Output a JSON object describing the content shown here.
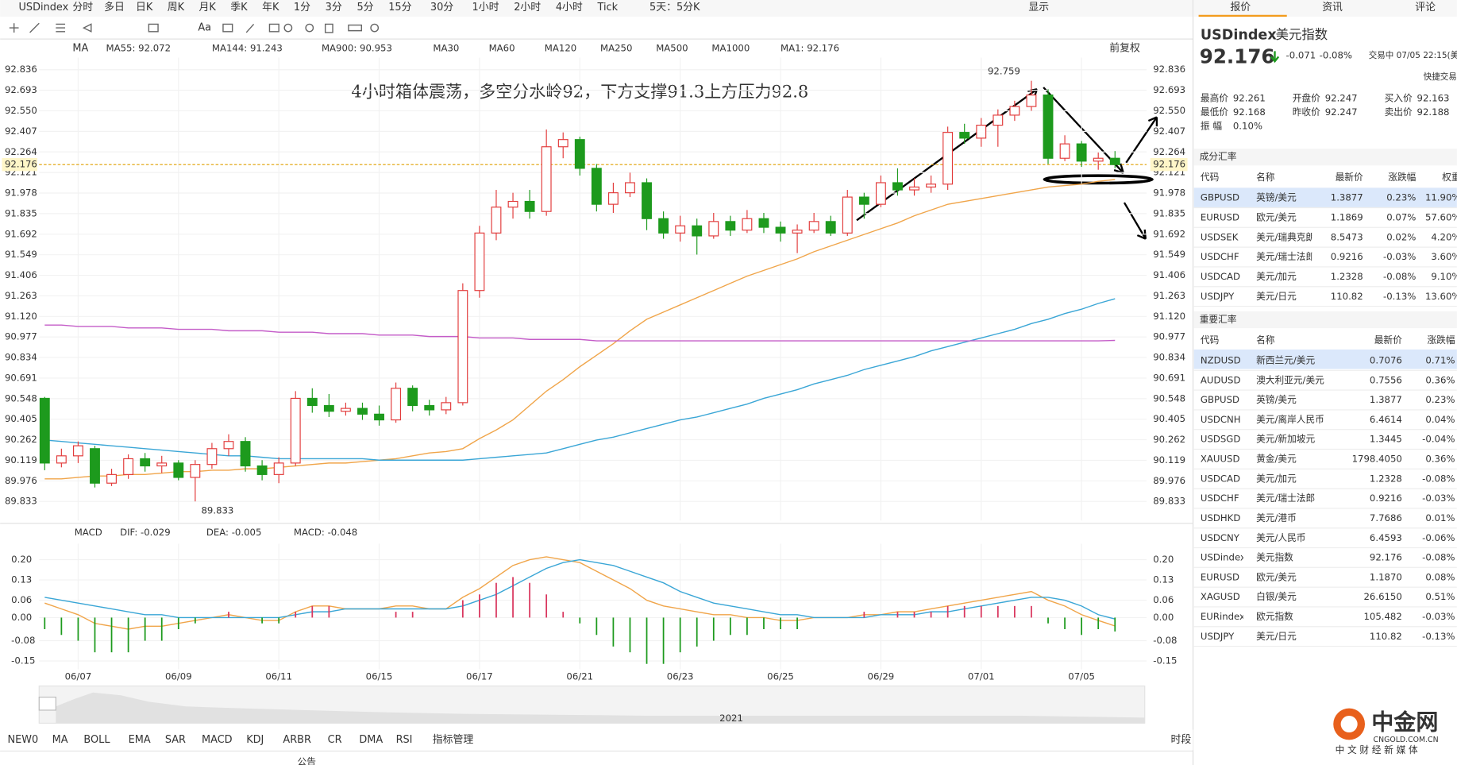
{
  "toolbar": {
    "symbol": "USDindex",
    "periods": [
      "分时",
      "多日",
      "日K",
      "周K",
      "月K",
      "季K",
      "年K",
      "1分",
      "3分",
      "5分",
      "15分",
      "30分",
      "1小时",
      "2小时",
      "4小时",
      "Tick",
      "5天：5分K"
    ],
    "active_period": "4小时",
    "display": "显示"
  },
  "indicator_bar": {
    "label": "MA",
    "restore": "前复权"
  },
  "chart_data": [
    {
      "type": "candlestick",
      "title": "4小时箱体震荡，多空分水岭92，下方支撑91.3上方压力92.8",
      "categories": [
        null,
        null,
        "06/07",
        null,
        null,
        null,
        null,
        null,
        "06/09",
        null,
        null,
        null,
        null,
        null,
        "06/11",
        null,
        null,
        null,
        null,
        null,
        "06/15",
        null,
        null,
        null,
        null,
        null,
        "06/17",
        null,
        null,
        null,
        null,
        null,
        "06/21",
        null,
        null,
        null,
        null,
        null,
        "06/23",
        null,
        null,
        null,
        null,
        null,
        "06/25",
        null,
        null,
        null,
        null,
        null,
        "06/29",
        null,
        null,
        null,
        null,
        null,
        "07/01",
        null,
        null,
        null,
        null,
        null,
        "07/05",
        null,
        null
      ],
      "open": [
        90.55,
        90.1,
        90.15,
        90.2,
        89.96,
        90.02,
        90.13,
        90.08,
        90.1,
        90.0,
        90.09,
        90.2,
        90.25,
        90.08,
        90.02,
        90.1,
        90.55,
        90.5,
        90.46,
        90.48,
        90.44,
        90.4,
        90.62,
        90.5,
        90.47,
        90.52,
        91.3,
        91.7,
        91.88,
        91.92,
        91.85,
        92.3,
        92.35,
        92.15,
        91.9,
        91.98,
        92.05,
        91.8,
        91.7,
        91.75,
        91.68,
        91.78,
        91.72,
        91.8,
        91.74,
        91.7,
        91.72,
        91.78,
        91.7,
        91.95,
        91.9,
        92.05,
        92.0,
        92.02,
        92.04,
        92.4,
        92.36,
        92.45,
        92.52,
        92.58,
        92.66,
        92.22,
        92.32,
        92.2,
        92.22
      ],
      "high": [
        90.56,
        90.2,
        90.25,
        90.22,
        90.06,
        90.16,
        90.17,
        90.15,
        90.12,
        90.12,
        90.24,
        90.3,
        90.28,
        90.12,
        90.14,
        90.6,
        90.62,
        90.58,
        90.52,
        90.52,
        90.5,
        90.66,
        90.64,
        90.54,
        90.56,
        91.35,
        91.75,
        92.0,
        91.98,
        92.0,
        92.42,
        92.4,
        92.37,
        92.18,
        92.05,
        92.12,
        92.08,
        91.85,
        91.82,
        91.8,
        91.84,
        91.82,
        91.86,
        91.84,
        91.78,
        91.76,
        91.84,
        91.82,
        92.0,
        91.98,
        92.1,
        92.15,
        92.08,
        92.1,
        92.44,
        92.46,
        92.5,
        92.56,
        92.62,
        92.759,
        92.7,
        92.38,
        92.34,
        92.26,
        92.27
      ],
      "low": [
        90.05,
        90.07,
        90.1,
        89.93,
        89.94,
        89.99,
        90.04,
        90.03,
        89.98,
        89.833,
        90.06,
        90.15,
        90.04,
        89.98,
        89.96,
        90.08,
        90.45,
        90.42,
        90.43,
        90.4,
        90.36,
        90.38,
        90.46,
        90.43,
        90.44,
        90.5,
        91.25,
        91.65,
        91.8,
        91.8,
        91.82,
        92.22,
        92.1,
        91.85,
        91.84,
        91.95,
        91.72,
        91.66,
        91.64,
        91.55,
        91.66,
        91.68,
        91.7,
        91.7,
        91.64,
        91.56,
        91.7,
        91.68,
        91.68,
        91.8,
        91.88,
        91.96,
        91.96,
        91.98,
        92.0,
        92.32,
        92.3,
        92.3,
        92.48,
        92.55,
        92.18,
        92.2,
        92.16,
        92.14,
        92.15
      ],
      "close": [
        90.1,
        90.15,
        90.22,
        89.96,
        90.02,
        90.13,
        90.08,
        90.1,
        90.0,
        90.09,
        90.2,
        90.25,
        90.08,
        90.02,
        90.1,
        90.55,
        90.5,
        90.46,
        90.48,
        90.44,
        90.4,
        90.62,
        90.5,
        90.47,
        90.52,
        91.3,
        91.7,
        91.88,
        91.92,
        91.85,
        92.3,
        92.35,
        92.15,
        91.9,
        91.98,
        92.05,
        91.8,
        91.7,
        91.75,
        91.68,
        91.78,
        91.72,
        91.8,
        91.74,
        91.7,
        91.72,
        91.78,
        91.7,
        91.95,
        91.9,
        92.05,
        92.0,
        92.02,
        92.04,
        92.4,
        92.36,
        92.45,
        92.52,
        92.58,
        92.66,
        92.22,
        92.32,
        92.2,
        92.22,
        92.176
      ],
      "up_color": "#e23b3b",
      "down_color": "#1d9a1d",
      "series": [
        {
          "name": "MA55: 92.072",
          "color": "#f0a54a",
          "values": [
            89.99,
            89.99,
            90.0,
            90.01,
            90.01,
            90.02,
            90.02,
            90.03,
            90.04,
            90.04,
            90.05,
            90.05,
            90.06,
            90.06,
            90.07,
            90.08,
            90.09,
            90.1,
            90.1,
            90.11,
            90.12,
            90.13,
            90.15,
            90.17,
            90.18,
            90.2,
            90.27,
            90.33,
            90.4,
            90.5,
            90.6,
            90.68,
            90.77,
            90.85,
            90.93,
            91.02,
            91.1,
            91.15,
            91.2,
            91.25,
            91.3,
            91.35,
            91.4,
            91.44,
            91.48,
            91.52,
            91.57,
            91.61,
            91.65,
            91.69,
            91.73,
            91.77,
            91.82,
            91.86,
            91.9,
            91.92,
            91.94,
            91.96,
            91.98,
            92.0,
            92.02,
            92.03,
            92.04,
            92.06,
            92.072
          ]
        },
        {
          "name": "MA144: 91.243",
          "color": "#3aa6d6",
          "values": [
            90.26,
            90.25,
            90.24,
            90.23,
            90.22,
            90.21,
            90.2,
            90.19,
            90.18,
            90.17,
            90.16,
            90.15,
            90.15,
            90.14,
            90.13,
            90.13,
            90.13,
            90.13,
            90.13,
            90.13,
            90.12,
            90.12,
            90.12,
            90.12,
            90.12,
            90.12,
            90.13,
            90.14,
            90.15,
            90.16,
            90.17,
            90.2,
            90.23,
            90.26,
            90.28,
            90.31,
            90.34,
            90.37,
            90.4,
            90.42,
            90.45,
            90.48,
            90.51,
            90.55,
            90.58,
            90.61,
            90.65,
            90.68,
            90.71,
            90.75,
            90.78,
            90.81,
            90.84,
            90.88,
            90.91,
            90.94,
            90.97,
            91.0,
            91.03,
            91.07,
            91.1,
            91.14,
            91.17,
            91.21,
            91.243
          ]
        },
        {
          "name": "MA900: 90.953",
          "color": "#c45cc8",
          "values": [
            91.06,
            91.06,
            91.05,
            91.05,
            91.05,
            91.04,
            91.04,
            91.04,
            91.03,
            91.03,
            91.03,
            91.02,
            91.02,
            91.02,
            91.01,
            91.01,
            91.01,
            91.0,
            91.0,
            91.0,
            90.99,
            90.99,
            90.99,
            90.98,
            90.98,
            90.98,
            90.97,
            90.97,
            90.97,
            90.96,
            90.96,
            90.96,
            90.96,
            90.95,
            90.95,
            90.95,
            90.95,
            90.95,
            90.95,
            90.95,
            90.95,
            90.95,
            90.95,
            90.95,
            90.95,
            90.95,
            90.95,
            90.95,
            90.95,
            90.95,
            90.95,
            90.95,
            90.95,
            90.95,
            90.95,
            90.95,
            90.95,
            90.95,
            90.95,
            90.95,
            90.95,
            90.95,
            90.95,
            90.95,
            90.953
          ]
        }
      ],
      "inactive_series": [
        "MA30",
        "MA60",
        "MA120",
        "MA250",
        "MA500",
        "MA1000"
      ],
      "extra_legend": "MA1: 92.176",
      "max_label": 92.759,
      "min_label": 89.833,
      "last_price": 92.176,
      "ylim": [
        89.7,
        92.92
      ],
      "yticks": [
        92.836,
        92.693,
        {
          "value": 92.55,
          "label": "92.550"
        },
        92.407,
        92.264,
        92.121,
        91.978,
        91.835,
        91.692,
        91.549,
        91.406,
        91.263,
        {
          "value": 91.12,
          "label": "91.120"
        },
        90.977,
        90.834,
        90.691,
        90.548,
        90.405,
        90.262,
        90.119,
        89.976,
        89.833
      ],
      "grid": true
    },
    {
      "type": "macd",
      "title": "MACD",
      "series": [
        {
          "name": "DIF: -0.029",
          "color": "#f0a54a",
          "values": [
            0.05,
            0.03,
            0.01,
            -0.02,
            -0.03,
            -0.04,
            -0.03,
            -0.03,
            -0.02,
            -0.01,
            0.0,
            0.01,
            0.0,
            -0.01,
            -0.01,
            0.02,
            0.04,
            0.04,
            0.03,
            0.03,
            0.03,
            0.04,
            0.04,
            0.03,
            0.03,
            0.07,
            0.1,
            0.14,
            0.18,
            0.2,
            0.21,
            0.2,
            0.19,
            0.16,
            0.13,
            0.1,
            0.06,
            0.04,
            0.03,
            0.02,
            0.01,
            0.01,
            0.0,
            0.0,
            -0.01,
            -0.01,
            0.0,
            0.0,
            0.0,
            0.01,
            0.01,
            0.02,
            0.02,
            0.03,
            0.04,
            0.05,
            0.06,
            0.07,
            0.08,
            0.09,
            0.06,
            0.04,
            0.01,
            -0.01,
            -0.029
          ]
        },
        {
          "name": "DEA: -0.005",
          "color": "#3aa6d6",
          "values": [
            0.07,
            0.06,
            0.05,
            0.04,
            0.03,
            0.02,
            0.01,
            0.01,
            0.0,
            0.0,
            0.0,
            0.0,
            0.0,
            0.0,
            0.0,
            0.01,
            0.02,
            0.02,
            0.03,
            0.03,
            0.03,
            0.03,
            0.03,
            0.03,
            0.03,
            0.04,
            0.06,
            0.08,
            0.11,
            0.14,
            0.17,
            0.19,
            0.2,
            0.19,
            0.18,
            0.16,
            0.14,
            0.12,
            0.09,
            0.07,
            0.05,
            0.04,
            0.03,
            0.02,
            0.01,
            0.01,
            0.0,
            0.0,
            0.0,
            0.0,
            0.01,
            0.01,
            0.01,
            0.02,
            0.02,
            0.03,
            0.04,
            0.05,
            0.06,
            0.07,
            0.07,
            0.06,
            0.04,
            0.01,
            -0.005
          ]
        },
        {
          "name": "MACD: -0.048",
          "color": "#d9365e",
          "type": "bar",
          "values": [
            -0.04,
            -0.06,
            -0.08,
            -0.12,
            -0.12,
            -0.12,
            -0.08,
            -0.08,
            -0.04,
            -0.02,
            0.0,
            0.02,
            0.0,
            -0.02,
            -0.02,
            0.02,
            0.04,
            0.04,
            0.0,
            0.0,
            0.0,
            0.02,
            0.02,
            0.0,
            0.0,
            0.06,
            0.08,
            0.12,
            0.14,
            0.12,
            0.08,
            0.02,
            -0.02,
            -0.06,
            -0.1,
            -0.12,
            -0.16,
            -0.16,
            -0.12,
            -0.1,
            -0.08,
            -0.06,
            -0.06,
            -0.04,
            -0.04,
            -0.04,
            0.0,
            0.0,
            0.0,
            0.02,
            0.0,
            0.02,
            0.02,
            0.02,
            0.04,
            0.04,
            0.04,
            0.04,
            0.04,
            0.04,
            -0.02,
            -0.04,
            -0.06,
            -0.04,
            -0.048
          ]
        }
      ],
      "ylim": [
        -0.185,
        0.255
      ],
      "yticks": [
        {
          "value": 0.2,
          "label": "0.20"
        },
        0.13,
        0.06,
        {
          "value": 0,
          "label": "0.00"
        },
        -0.08,
        -0.15
      ]
    }
  ],
  "navigator": {
    "year": "2021"
  },
  "indicator_tabs": {
    "tabs": [
      "NEW0",
      "MA",
      "BOLL",
      "EMA",
      "SAR",
      "MACD",
      "KDJ",
      "ARBR",
      "CR",
      "DMA",
      "RSI",
      "指标管理"
    ],
    "active": [
      "MA",
      "MACD"
    ],
    "right": "时段"
  },
  "footer": {
    "left": "公告"
  },
  "quote": {
    "tabs": [
      "报价",
      "资讯",
      "评论"
    ],
    "symbol": "USDindex",
    "name": "美元指数",
    "price": 92.176,
    "change": -0.071,
    "change_pct": "-0.08%",
    "status": "交易中 07/05 22:15(美",
    "quick_trade": "快捷交易",
    "stats": [
      {
        "label": "最高价",
        "value": 92.261
      },
      {
        "label": "开盘价",
        "value": 92.247
      },
      {
        "label": "买入价",
        "value": 92.163
      },
      {
        "label": "最低价",
        "value": 92.168
      },
      {
        "label": "昨收价",
        "value": 92.247
      },
      {
        "label": "卖出价",
        "value": 92.188
      },
      {
        "label": "振 幅",
        "value": "0.10%"
      }
    ]
  },
  "components": {
    "title": "成分汇率",
    "headers": [
      "代码",
      "名称",
      "最新价",
      "涨跌幅",
      "权重"
    ],
    "rows": [
      [
        "GBPUSD",
        "英镑/美元",
        "1.3877",
        "0.23%",
        "11.90%"
      ],
      [
        "EURUSD",
        "欧元/美元",
        "1.1869",
        "0.07%",
        "57.60%"
      ],
      [
        "USDSEK",
        "美元/瑞典克朗",
        "8.5473",
        "0.02%",
        "4.20%"
      ],
      [
        "USDCHF",
        "美元/瑞士法郎",
        "0.9216",
        "-0.03%",
        "3.60%"
      ],
      [
        "USDCAD",
        "美元/加元",
        "1.2328",
        "-0.08%",
        "9.10%"
      ],
      [
        "USDJPY",
        "美元/日元",
        "110.82",
        "-0.13%",
        "13.60%"
      ]
    ]
  },
  "major": {
    "title": "重要汇率",
    "headers": [
      "代码",
      "名称",
      "最新价",
      "涨跌幅"
    ],
    "rows": [
      [
        "NZDUSD",
        "新西兰元/美元",
        "0.7076",
        "0.71%"
      ],
      [
        "AUDUSD",
        "澳大利亚元/美元",
        "0.7556",
        "0.36%"
      ],
      [
        "GBPUSD",
        "英镑/美元",
        "1.3877",
        "0.23%"
      ],
      [
        "USDCNH",
        "美元/离岸人民币",
        "6.4614",
        "0.04%"
      ],
      [
        "USDSGD",
        "美元/新加坡元",
        "1.3445",
        "-0.04%"
      ],
      [
        "XAUUSD",
        "黄金/美元",
        "1798.4050",
        "0.36%"
      ],
      [
        "USDCAD",
        "美元/加元",
        "1.2328",
        "-0.08%"
      ],
      [
        "USDCHF",
        "美元/瑞士法郎",
        "0.9216",
        "-0.03%"
      ],
      [
        "USDHKD",
        "美元/港币",
        "7.7686",
        "0.01%"
      ],
      [
        "USDCNY",
        "美元/人民币",
        "6.4593",
        "-0.06%"
      ],
      [
        "USDindex",
        "美元指数",
        "92.176",
        "-0.08%"
      ],
      [
        "EURUSD",
        "欧元/美元",
        "1.1870",
        "0.08%"
      ],
      [
        "XAGUSD",
        "白银/美元",
        "26.6150",
        "0.51%"
      ],
      [
        "EURindex",
        "欧元指数",
        "105.482",
        "-0.03%"
      ],
      [
        "USDJPY",
        "美元/日元",
        "110.82",
        "-0.13%"
      ]
    ]
  },
  "watermark": {
    "brand": "中金网",
    "domain": "CNGOLD.COM.CN",
    "slogan": "中 文 财 经 新 媒 体"
  }
}
